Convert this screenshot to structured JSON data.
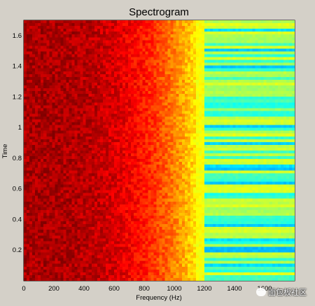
{
  "chart_data": {
    "type": "heatmap",
    "title": "Spectrogram",
    "xlabel": "Frequency (Hz)",
    "ylabel": "Time",
    "xlim": [
      0,
      1800
    ],
    "ylim": [
      0,
      1.7
    ],
    "x_ticks": [
      "0",
      "200",
      "400",
      "600",
      "800",
      "1000",
      "1200",
      "1400",
      "1600"
    ],
    "y_ticks": [
      "0.2",
      "0.4",
      "0.6",
      "0.8",
      "1",
      "1.2",
      "1.4",
      "1.6"
    ],
    "x_tick_values": [
      0,
      200,
      400,
      600,
      800,
      1000,
      1200,
      1400,
      1600
    ],
    "y_tick_values": [
      0.2,
      0.4,
      0.6,
      0.8,
      1.0,
      1.2,
      1.4,
      1.6
    ],
    "grid": false,
    "colormap": "jet",
    "regions": [
      {
        "freq_range": [
          0,
          900
        ],
        "level": "high (dark red / red)"
      },
      {
        "freq_range": [
          900,
          1150
        ],
        "level": "medium-high (orange / yellow)"
      },
      {
        "freq_range": [
          1150,
          1200
        ],
        "level": "transition (yellow)"
      },
      {
        "freq_range": [
          1200,
          1800
        ],
        "level": "low (cyan / light green with blue horizontal bands)"
      }
    ]
  },
  "watermark": {
    "text": "面包板社区"
  }
}
